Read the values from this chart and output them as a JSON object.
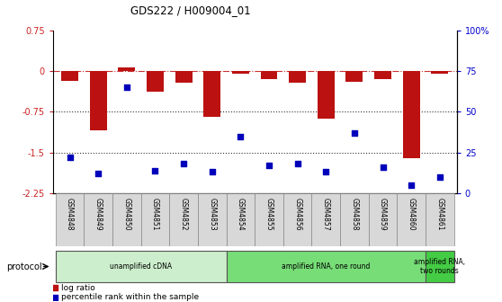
{
  "title": "GDS222 / H009004_01",
  "categories": [
    "GSM4848",
    "GSM4849",
    "GSM4850",
    "GSM4851",
    "GSM4852",
    "GSM4853",
    "GSM4854",
    "GSM4855",
    "GSM4856",
    "GSM4857",
    "GSM4858",
    "GSM4859",
    "GSM4860",
    "GSM4861"
  ],
  "log_ratio": [
    -0.18,
    -1.1,
    0.07,
    -0.38,
    -0.22,
    -0.85,
    -0.05,
    -0.15,
    -0.22,
    -0.88,
    -0.2,
    -0.15,
    -1.6,
    -0.05
  ],
  "percentile_rank": [
    22,
    12,
    65,
    14,
    18,
    13,
    35,
    17,
    18,
    13,
    37,
    16,
    5,
    10
  ],
  "ymin": -2.25,
  "ymax": 0.75,
  "yticks_left": [
    0.75,
    0.0,
    -0.75,
    -1.5,
    -2.25
  ],
  "ytick_left_labels": [
    "0.75",
    "0",
    "-0.75",
    "-1.5",
    "-2.25"
  ],
  "yticks_right_pct": [
    100,
    75,
    50,
    25,
    0
  ],
  "ytick_right_labels": [
    "100%",
    "75",
    "50",
    "25",
    "0"
  ],
  "bar_color": "#bb1111",
  "scatter_color": "#0000bb",
  "protocol_groups": [
    {
      "label": "unamplified cDNA",
      "start": 0,
      "end": 5,
      "color": "#cceecc"
    },
    {
      "label": "amplified RNA, one round",
      "start": 6,
      "end": 12,
      "color": "#77dd77"
    },
    {
      "label": "amplified RNA,\ntwo rounds",
      "start": 13,
      "end": 13,
      "color": "#44cc44"
    }
  ],
  "protocol_label": "protocol",
  "hline_zero_color": "#cc3333",
  "dotted_line_color": "#333333",
  "legend_log_color": "#bb1111",
  "legend_pct_color": "#0000bb"
}
